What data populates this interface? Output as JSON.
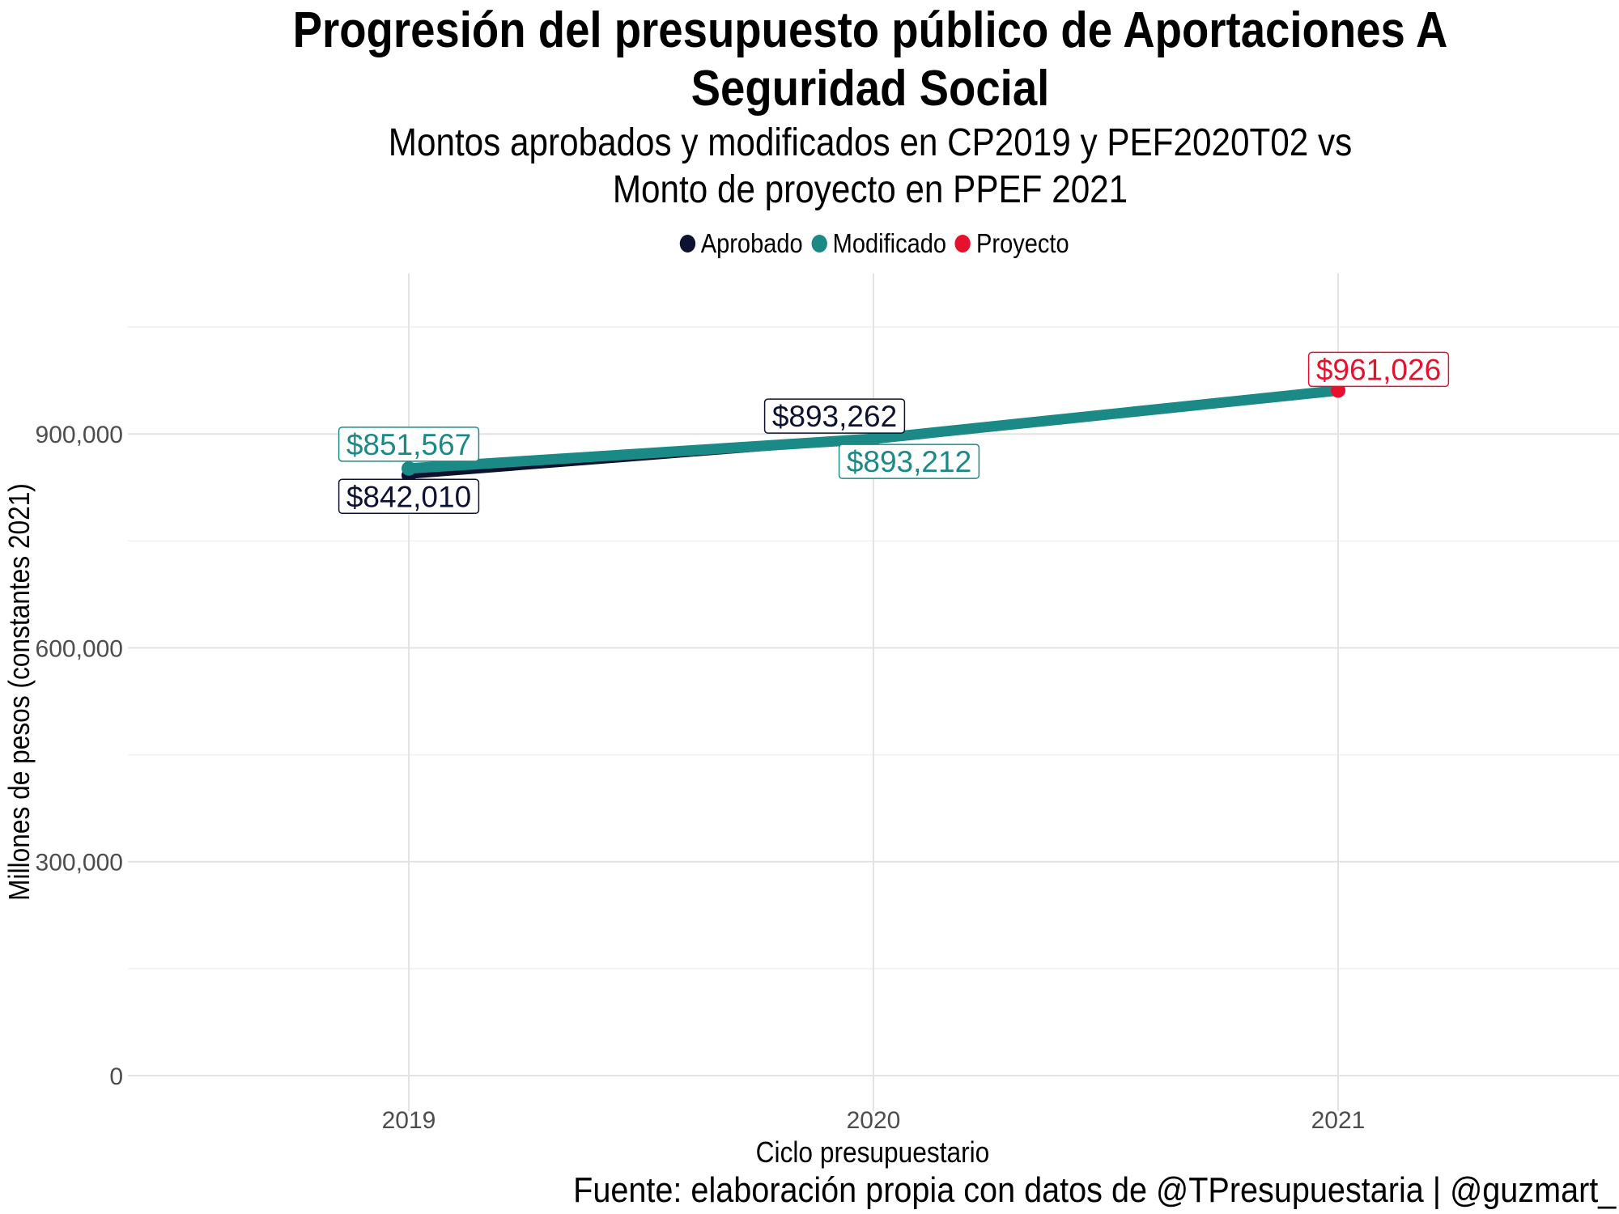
{
  "chart_data": {
    "type": "line",
    "title": "Progresión del presupuesto público de Aportaciones A Seguridad Social",
    "subtitle_lines": [
      "Montos aprobados y modificados en CP2019 y PEF2020T02 vs",
      "Monto de proyecto en PPEF 2021"
    ],
    "xlabel": "Ciclo presupuestario",
    "ylabel": "Millones de pesos (constantes 2021)",
    "caption": "Fuente: elaboración propia con datos de @TPresupuestaria | @guzmart_",
    "categories": [
      "2019",
      "2020",
      "2021"
    ],
    "ylim": [
      -50000,
      1125000
    ],
    "yticks": [
      0,
      300000,
      600000,
      900000
    ],
    "ytick_labels": [
      "0",
      "300,000",
      "600,000",
      "900,000"
    ],
    "grid": true,
    "legend_position": "top",
    "series": [
      {
        "name": "Aprobado",
        "color": "#0c1230",
        "x": [
          "2019",
          "2020"
        ],
        "values": [
          842010,
          893262
        ],
        "labels": [
          "$842,010",
          "$893,262"
        ]
      },
      {
        "name": "Modificado",
        "color": "#1b8a87",
        "x": [
          "2019",
          "2020",
          "2021"
        ],
        "values": [
          851567,
          893212,
          961026
        ],
        "labels": [
          "$851,567",
          "$893,212",
          ""
        ]
      },
      {
        "name": "Proyecto",
        "color": "#e8112d",
        "x": [
          "2021"
        ],
        "values": [
          961026
        ],
        "labels": [
          "$961,026"
        ]
      }
    ]
  }
}
